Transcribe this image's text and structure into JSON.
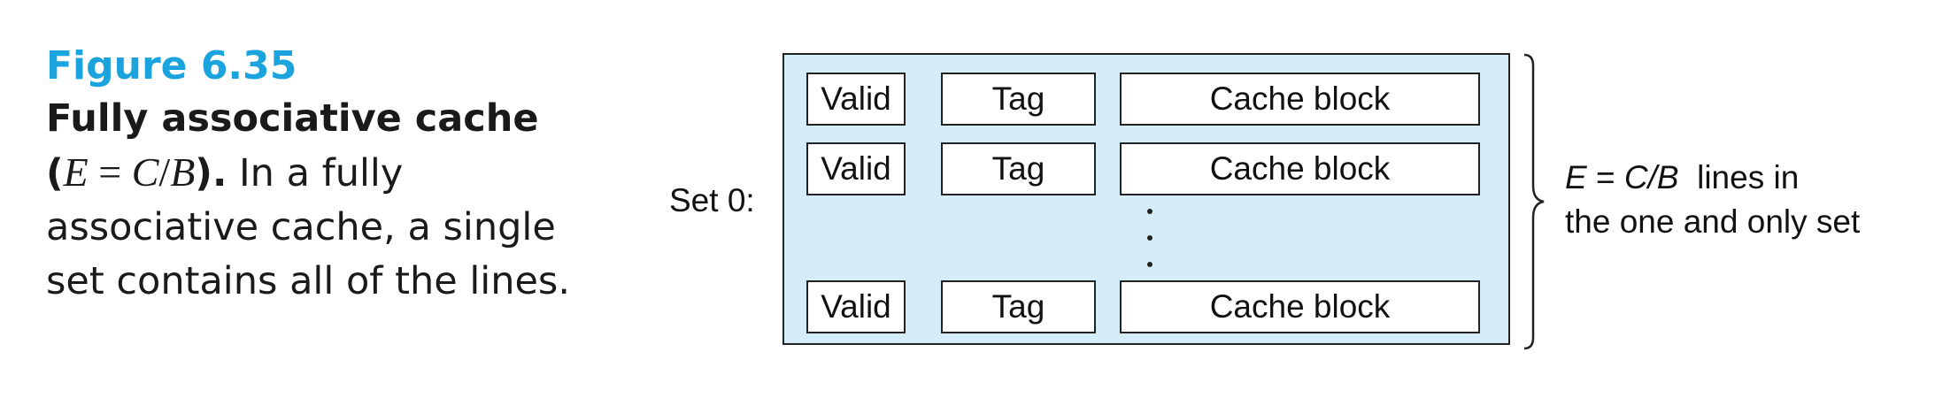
{
  "caption": {
    "figure_label": "Figure 6.35",
    "title": "Fully associative cache",
    "formula": {
      "open": "(",
      "lhs": "E",
      "eq": " = ",
      "num": "C",
      "slash": "/",
      "den": "B",
      "close": ").",
      "rest": " In a fully"
    },
    "body_lines": [
      "associative cache, a single",
      "set contains all of the lines."
    ]
  },
  "diagram": {
    "set_label": "Set 0:",
    "rows": [
      {
        "valid": "Valid",
        "tag": "Tag",
        "block": "Cache block"
      },
      {
        "valid": "Valid",
        "tag": "Tag",
        "block": "Cache block"
      },
      {
        "valid": "Valid",
        "tag": "Tag",
        "block": "Cache block"
      }
    ],
    "ellipsis": "vertical-dots",
    "background_color": "#d5edf8",
    "annotation": {
      "e_var": "E",
      "eq": " = ",
      "c_over_b": "C/B",
      "line1_rest": "  lines in",
      "line2": "the one and only set"
    }
  },
  "colors": {
    "figure_label": "#1aa3dd",
    "set_fill": "#d5edf8",
    "border": "#222222"
  }
}
